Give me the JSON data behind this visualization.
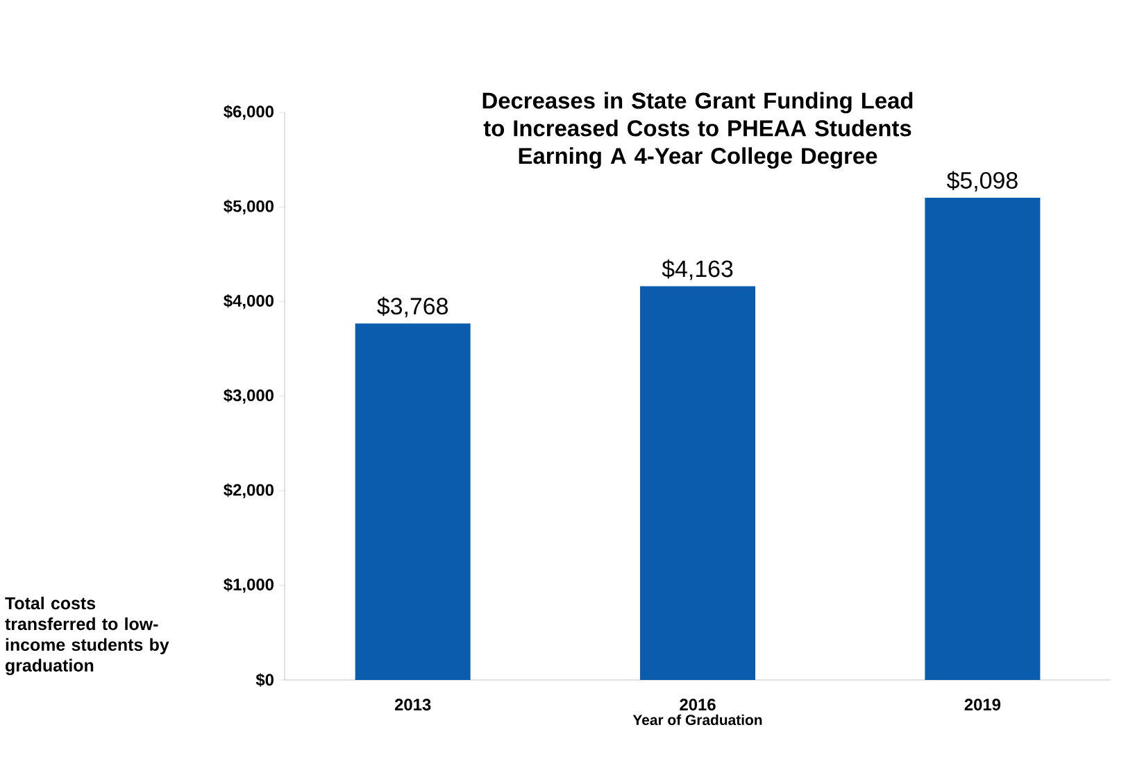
{
  "chart_data": {
    "type": "bar",
    "title": "Decreases in State Grant Funding Lead to Increased Costs to PHEAA Students Earning A 4-Year College Degree",
    "xlabel": "Year of Graduation",
    "ylabel": "Total costs transferred to low-income students by graduation",
    "categories": [
      "2013",
      "2016",
      "2019"
    ],
    "values": [
      3768,
      4163,
      5098
    ],
    "value_labels": [
      "$3,768",
      "$4,163",
      "$5,098"
    ],
    "color": "#0b5cad",
    "ylim": [
      0,
      6000
    ],
    "yticks": [
      {
        "value": 0,
        "label": "$0"
      },
      {
        "value": 1000,
        "label": "$1,000"
      },
      {
        "value": 2000,
        "label": "$2,000"
      },
      {
        "value": 3000,
        "label": "$3,000"
      },
      {
        "value": 4000,
        "label": "$4,000"
      },
      {
        "value": 5000,
        "label": "$5,000"
      },
      {
        "value": 6000,
        "label": "$6,000"
      }
    ]
  }
}
